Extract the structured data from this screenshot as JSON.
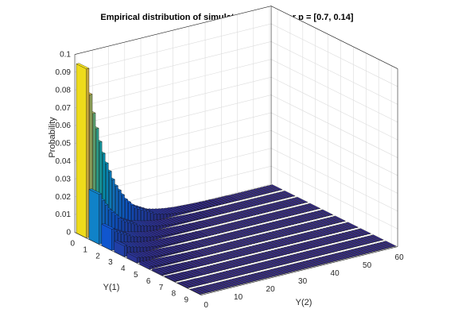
{
  "chart_data": {
    "type": "bar3",
    "title": "Empirical distribution of simulated samples for p = [0.7, 0.14]",
    "xlabel": "Y(1)",
    "ylabel": "Y(2)",
    "zlabel": "Probability",
    "x_ticks": [
      "0",
      "1",
      "2",
      "3",
      "4",
      "5",
      "6",
      "7",
      "8",
      "9"
    ],
    "y_ticks": [
      "0",
      "10",
      "20",
      "30",
      "40",
      "50",
      "60"
    ],
    "z_ticks": [
      "0",
      "0.01",
      "0.02",
      "0.03",
      "0.04",
      "0.05",
      "0.06",
      "0.07",
      "0.08",
      "0.09",
      "0.1"
    ],
    "xlim": [
      0,
      9
    ],
    "ylim": [
      0,
      60
    ],
    "zlim": [
      0,
      0.1
    ],
    "grid": true,
    "colormap": [
      "#352a87",
      "#0f5cdd",
      "#1481d6",
      "#06a4ca",
      "#2eb7a4",
      "#87bf77",
      "#d1bb59",
      "#fec832",
      "#f9fb0e"
    ],
    "x": [
      0,
      1,
      2,
      3,
      4,
      5,
      6,
      7,
      8,
      9
    ],
    "y_step": 1,
    "y_count": 61,
    "z_rows": [
      [
        0.095,
        0.08,
        0.069,
        0.06,
        0.052,
        0.045,
        0.039,
        0.034,
        0.029,
        0.025,
        0.022,
        0.019,
        0.016,
        0.014,
        0.012,
        0.01,
        0.009,
        0.008,
        0.007,
        0.006,
        0.005,
        0.004,
        0.0035,
        0.003,
        0.0026,
        0.0022,
        0.0019,
        0.0016,
        0.0014,
        0.0012,
        0.001,
        0.0009,
        0.0008,
        0.0007,
        0.0006,
        0.0005,
        0.0004,
        0.0003,
        0.0003,
        0.0002,
        0.0002,
        0.0002,
        0.0001,
        0.0001,
        0.0001,
        0.0001,
        0.0001,
        0,
        0,
        0,
        0,
        0,
        0,
        0,
        0,
        0,
        0,
        0,
        0,
        0,
        0
      ],
      [
        0.028,
        0.024,
        0.021,
        0.018,
        0.016,
        0.014,
        0.012,
        0.01,
        0.009,
        0.008,
        0.007,
        0.006,
        0.005,
        0.0045,
        0.004,
        0.0035,
        0.003,
        0.0026,
        0.0022,
        0.0019,
        0.0016,
        0.0014,
        0.0012,
        0.001,
        0.0009,
        0.0008,
        0.0007,
        0.0006,
        0.0005,
        0.0004,
        0.0003,
        0.0003,
        0.0002,
        0.0002,
        0.0002,
        0.0001,
        0.0001,
        0.0001,
        0.0001,
        0,
        0,
        0,
        0,
        0,
        0,
        0,
        0,
        0,
        0,
        0,
        0,
        0,
        0,
        0,
        0,
        0,
        0,
        0,
        0,
        0,
        0
      ],
      [
        0.012,
        0.01,
        0.009,
        0.008,
        0.007,
        0.006,
        0.005,
        0.0045,
        0.004,
        0.0035,
        0.003,
        0.0026,
        0.0022,
        0.0019,
        0.0016,
        0.0014,
        0.0012,
        0.001,
        0.0009,
        0.0008,
        0.0007,
        0.0006,
        0.0005,
        0.0004,
        0.0003,
        0.0003,
        0.0002,
        0.0002,
        0.0001,
        0.0001,
        0.0001,
        0,
        0,
        0,
        0,
        0,
        0,
        0,
        0,
        0,
        0,
        0,
        0,
        0,
        0,
        0,
        0,
        0,
        0,
        0,
        0,
        0,
        0,
        0,
        0,
        0,
        0,
        0,
        0,
        0,
        0
      ],
      [
        0.006,
        0.005,
        0.0045,
        0.004,
        0.0035,
        0.003,
        0.0026,
        0.0022,
        0.0019,
        0.0016,
        0.0014,
        0.0012,
        0.001,
        0.0009,
        0.0008,
        0.0007,
        0.0006,
        0.0005,
        0.0004,
        0.0003,
        0.0003,
        0.0002,
        0.0002,
        0.0001,
        0.0001,
        0.0001,
        0,
        0,
        0,
        0,
        0,
        0,
        0,
        0,
        0,
        0,
        0,
        0,
        0,
        0,
        0,
        0,
        0,
        0,
        0,
        0,
        0,
        0,
        0,
        0,
        0,
        0,
        0,
        0,
        0,
        0,
        0,
        0,
        0,
        0,
        0
      ],
      [
        0.003,
        0.0026,
        0.0022,
        0.0019,
        0.0016,
        0.0014,
        0.0012,
        0.001,
        0.0009,
        0.0008,
        0.0007,
        0.0006,
        0.0005,
        0.0004,
        0.0003,
        0.0003,
        0.0002,
        0.0002,
        0.0001,
        0.0001,
        0.0001,
        0,
        0,
        0,
        0,
        0,
        0,
        0,
        0,
        0,
        0,
        0,
        0,
        0,
        0,
        0,
        0,
        0,
        0,
        0,
        0,
        0,
        0,
        0,
        0,
        0,
        0,
        0,
        0,
        0,
        0,
        0,
        0,
        0,
        0,
        0,
        0,
        0,
        0,
        0,
        0
      ],
      [
        0.0015,
        0.0013,
        0.0011,
        0.001,
        0.0009,
        0.0008,
        0.0007,
        0.0006,
        0.0005,
        0.0004,
        0.0003,
        0.0003,
        0.0002,
        0.0002,
        0.0001,
        0.0001,
        0.0001,
        0,
        0,
        0,
        0,
        0,
        0,
        0,
        0,
        0,
        0,
        0,
        0,
        0,
        0,
        0,
        0,
        0,
        0,
        0,
        0,
        0,
        0,
        0,
        0,
        0,
        0,
        0,
        0,
        0,
        0,
        0,
        0,
        0,
        0,
        0,
        0,
        0,
        0,
        0,
        0,
        0,
        0,
        0,
        0
      ],
      [
        0.0008,
        0.0007,
        0.0006,
        0.0005,
        0.0004,
        0.0004,
        0.0003,
        0.0003,
        0.0002,
        0.0002,
        0.0001,
        0.0001,
        0.0001,
        0,
        0,
        0,
        0,
        0,
        0,
        0,
        0,
        0,
        0,
        0,
        0,
        0,
        0,
        0,
        0,
        0,
        0,
        0,
        0,
        0,
        0,
        0,
        0,
        0,
        0,
        0,
        0,
        0,
        0,
        0,
        0,
        0,
        0,
        0,
        0,
        0,
        0,
        0,
        0,
        0,
        0,
        0,
        0,
        0,
        0,
        0,
        0
      ],
      [
        0.0004,
        0.0003,
        0.0003,
        0.0002,
        0.0002,
        0.0002,
        0.0001,
        0.0001,
        0.0001,
        0,
        0,
        0,
        0,
        0,
        0,
        0,
        0,
        0,
        0,
        0,
        0,
        0,
        0,
        0,
        0,
        0,
        0,
        0,
        0,
        0,
        0,
        0,
        0,
        0,
        0,
        0,
        0,
        0,
        0,
        0,
        0,
        0,
        0,
        0,
        0,
        0,
        0,
        0,
        0,
        0,
        0,
        0,
        0,
        0,
        0,
        0,
        0,
        0,
        0,
        0,
        0
      ],
      [
        0.0002,
        0.0002,
        0.0001,
        0.0001,
        0.0001,
        0.0001,
        0,
        0,
        0,
        0,
        0,
        0,
        0,
        0,
        0,
        0,
        0,
        0,
        0,
        0,
        0,
        0,
        0,
        0,
        0,
        0,
        0,
        0,
        0,
        0,
        0,
        0,
        0,
        0,
        0,
        0,
        0,
        0,
        0,
        0,
        0,
        0,
        0,
        0,
        0,
        0,
        0,
        0,
        0,
        0,
        0,
        0,
        0,
        0,
        0,
        0,
        0,
        0,
        0,
        0,
        0
      ],
      [
        0.0001,
        0.0001,
        0.0001,
        0,
        0,
        0,
        0,
        0,
        0,
        0,
        0,
        0,
        0,
        0,
        0,
        0,
        0,
        0,
        0,
        0,
        0,
        0,
        0,
        0,
        0,
        0,
        0,
        0,
        0,
        0,
        0,
        0,
        0,
        0,
        0,
        0,
        0,
        0,
        0,
        0,
        0,
        0,
        0,
        0,
        0,
        0,
        0,
        0,
        0,
        0,
        0,
        0,
        0,
        0,
        0,
        0,
        0,
        0,
        0,
        0,
        0
      ]
    ]
  }
}
